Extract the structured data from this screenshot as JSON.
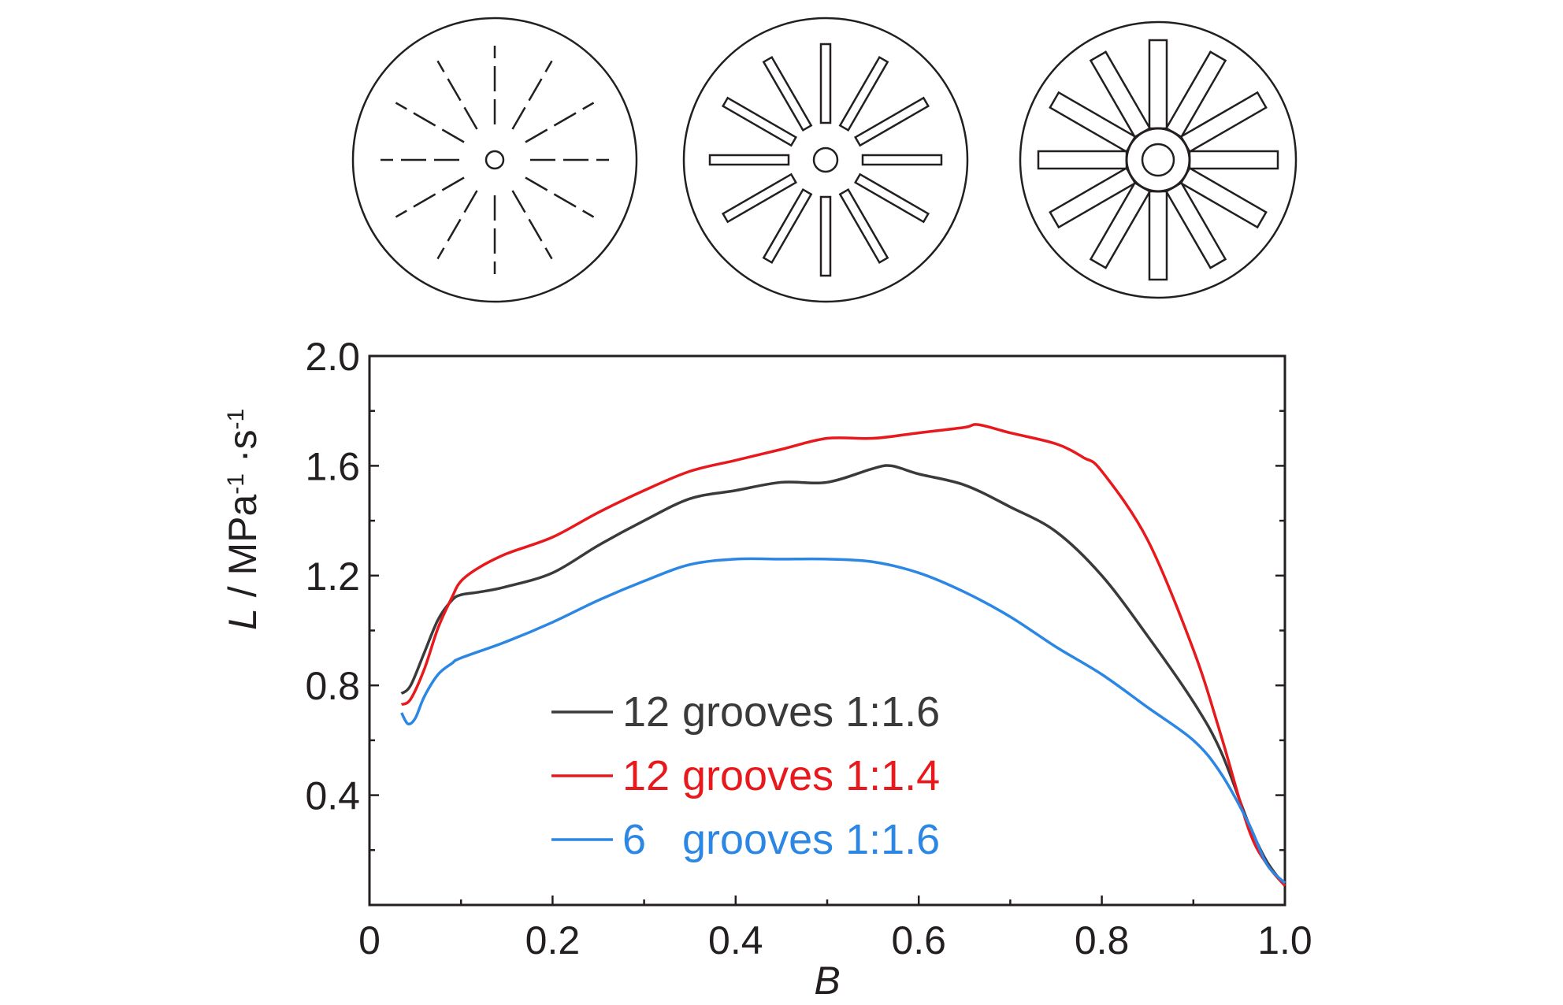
{
  "chart_data": {
    "type": "line",
    "xlabel": "B",
    "ylabel": "L / MPa-1·s-1",
    "ylabel_parts": {
      "var": "L",
      "unit_a": " / MPa",
      "sup1": "-1",
      "unit_b": " ·s",
      "sup2": "-1"
    },
    "xlim": [
      0,
      1.0
    ],
    "ylim": [
      0,
      2.0
    ],
    "xticks": [
      "0",
      "0.2",
      "0.4",
      "0.6",
      "0.8",
      "1.0"
    ],
    "yticks": [
      "0.4",
      "0.8",
      "1.2",
      "1.6",
      "2.0"
    ],
    "grid": false,
    "legend_position": "lower-center",
    "series": [
      {
        "name": "12 grooves 1:1.6",
        "legend_count": "12",
        "legend_label": "grooves 1:1.6",
        "color": "#3a3a3a",
        "x": [
          0.035,
          0.045,
          0.06,
          0.075,
          0.09,
          0.1,
          0.12,
          0.15,
          0.2,
          0.25,
          0.3,
          0.35,
          0.4,
          0.45,
          0.5,
          0.55,
          0.57,
          0.6,
          0.65,
          0.7,
          0.75,
          0.8,
          0.85,
          0.9,
          0.93,
          0.96,
          0.98,
          1.0
        ],
        "y": [
          0.77,
          0.8,
          0.92,
          1.04,
          1.11,
          1.13,
          1.14,
          1.16,
          1.21,
          1.31,
          1.4,
          1.48,
          1.51,
          1.54,
          1.54,
          1.59,
          1.6,
          1.57,
          1.53,
          1.45,
          1.36,
          1.2,
          0.98,
          0.74,
          0.56,
          0.3,
          0.16,
          0.07
        ]
      },
      {
        "name": "12 grooves 1:1.4",
        "legend_count": "12",
        "legend_label": "grooves 1:1.4",
        "color": "#e8191c",
        "x": [
          0.035,
          0.045,
          0.06,
          0.075,
          0.09,
          0.1,
          0.12,
          0.15,
          0.2,
          0.25,
          0.3,
          0.35,
          0.4,
          0.45,
          0.5,
          0.55,
          0.6,
          0.65,
          0.665,
          0.7,
          0.75,
          0.78,
          0.8,
          0.85,
          0.9,
          0.93,
          0.96,
          0.98,
          1.0
        ],
        "y": [
          0.73,
          0.75,
          0.86,
          1.01,
          1.12,
          1.18,
          1.23,
          1.28,
          1.34,
          1.43,
          1.51,
          1.58,
          1.62,
          1.66,
          1.7,
          1.7,
          1.72,
          1.74,
          1.75,
          1.72,
          1.68,
          1.63,
          1.58,
          1.33,
          0.93,
          0.62,
          0.28,
          0.15,
          0.07
        ]
      },
      {
        "name": "6 grooves 1:1.6",
        "legend_count": "6",
        "legend_label": "grooves 1:1.6",
        "color": "#2b87e3",
        "x": [
          0.035,
          0.042,
          0.05,
          0.06,
          0.075,
          0.09,
          0.1,
          0.15,
          0.2,
          0.25,
          0.3,
          0.35,
          0.4,
          0.45,
          0.5,
          0.55,
          0.6,
          0.65,
          0.7,
          0.75,
          0.8,
          0.85,
          0.9,
          0.93,
          0.96,
          0.98,
          1.0
        ],
        "y": [
          0.7,
          0.66,
          0.68,
          0.76,
          0.84,
          0.88,
          0.9,
          0.96,
          1.03,
          1.11,
          1.18,
          1.24,
          1.26,
          1.26,
          1.26,
          1.25,
          1.21,
          1.14,
          1.05,
          0.94,
          0.84,
          0.72,
          0.6,
          0.48,
          0.3,
          0.15,
          0.08
        ]
      }
    ]
  },
  "disks": [
    {
      "name": "disk-dashed-grooves",
      "rays": 12,
      "style": "dashed"
    },
    {
      "name": "disk-narrow-grooves",
      "rays": 12,
      "style": "narrow"
    },
    {
      "name": "disk-wide-grooves",
      "rays": 12,
      "style": "wide"
    }
  ]
}
